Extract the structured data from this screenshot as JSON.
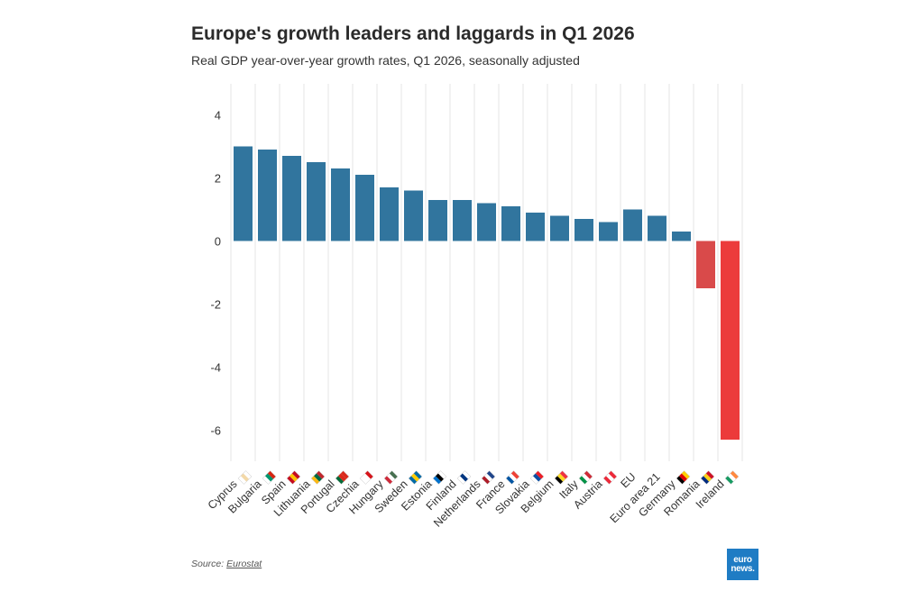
{
  "header": {
    "title": "Europe's growth leaders and laggards in Q1 2026",
    "subtitle": "Real GDP year-over-year growth rates, Q1 2026, seasonally adjusted"
  },
  "footer": {
    "source_prefix": "Source: ",
    "source_name": "Eurostat",
    "logo_line1": "euro",
    "logo_line2": "news."
  },
  "colors": {
    "positive": "#31759e",
    "negative_romania": "#d94a4a",
    "negative_ireland": "#ec3b3b",
    "grid": "#e6e6e6"
  },
  "chart_data": {
    "type": "bar",
    "categories": [
      "Cyprus",
      "Bulgaria",
      "Spain",
      "Lithuania",
      "Portugal",
      "Czechia",
      "Hungary",
      "Sweden",
      "Estonia",
      "Finland",
      "Netherlands",
      "France",
      "Slovakia",
      "Belgium",
      "Italy",
      "Austria",
      "EU",
      "Euro area 21",
      "Germany",
      "Romania",
      "Ireland"
    ],
    "values": [
      3.0,
      2.9,
      2.7,
      2.5,
      2.3,
      2.1,
      1.7,
      1.6,
      1.3,
      1.3,
      1.2,
      1.1,
      0.9,
      0.8,
      0.7,
      0.6,
      1.0,
      0.8,
      0.3,
      -1.5,
      -6.3
    ],
    "flag_icons": [
      "flag-cyprus-icon",
      "flag-bulgaria-icon",
      "flag-spain-icon",
      "flag-lithuania-icon",
      "flag-portugal-icon",
      "flag-czechia-icon",
      "flag-hungary-icon",
      "flag-sweden-icon",
      "flag-estonia-icon",
      "flag-finland-icon",
      "flag-netherlands-icon",
      "flag-france-icon",
      "flag-slovakia-icon",
      "flag-belgium-icon",
      "flag-italy-icon",
      "flag-austria-icon",
      "",
      "",
      "flag-germany-icon",
      "flag-romania-icon",
      "flag-ireland-icon"
    ],
    "yticks": [
      4,
      2,
      0,
      -2,
      -4,
      -6
    ],
    "ylim": [
      -7,
      5
    ],
    "grid": "vertical",
    "legend": "none"
  }
}
